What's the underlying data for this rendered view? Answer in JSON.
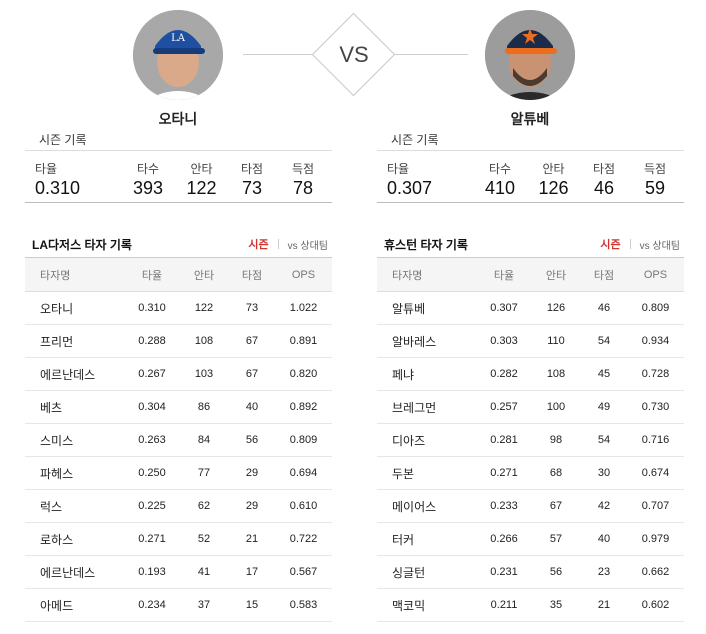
{
  "players": {
    "left": {
      "name": "오타니",
      "photo": "ohtani-photo",
      "cap_color": "#1f4fa0"
    },
    "right": {
      "name": "알튜베",
      "photo": "altuve-photo",
      "cap_color": "#1d2b4a"
    }
  },
  "vs_label": "VS",
  "season": {
    "title": "시즌 기록",
    "labels": [
      "타율",
      "타수",
      "안타",
      "타점",
      "득점"
    ],
    "left": [
      "0.310",
      "393",
      "122",
      "73",
      "78"
    ],
    "right": [
      "0.307",
      "410",
      "126",
      "46",
      "59"
    ]
  },
  "teams": {
    "left": {
      "title": "LA다저스 타자 기록",
      "tab_season": "시즌",
      "tab_vs": "vs 상대팀",
      "headers": [
        "타자명",
        "타율",
        "안타",
        "타점",
        "OPS"
      ],
      "rows": [
        [
          "오타니",
          "0.310",
          "122",
          "73",
          "1.022"
        ],
        [
          "프리먼",
          "0.288",
          "108",
          "67",
          "0.891"
        ],
        [
          "에르난데스",
          "0.267",
          "103",
          "67",
          "0.820"
        ],
        [
          "베츠",
          "0.304",
          "86",
          "40",
          "0.892"
        ],
        [
          "스미스",
          "0.263",
          "84",
          "56",
          "0.809"
        ],
        [
          "파헤스",
          "0.250",
          "77",
          "29",
          "0.694"
        ],
        [
          "럭스",
          "0.225",
          "62",
          "29",
          "0.610"
        ],
        [
          "로하스",
          "0.271",
          "52",
          "21",
          "0.722"
        ],
        [
          "에르난데스",
          "0.193",
          "41",
          "17",
          "0.567"
        ],
        [
          "아메드",
          "0.234",
          "37",
          "15",
          "0.583"
        ]
      ]
    },
    "right": {
      "title": "휴스턴 타자 기록",
      "tab_season": "시즌",
      "tab_vs": "vs 상대팀",
      "headers": [
        "타자명",
        "타율",
        "안타",
        "타점",
        "OPS"
      ],
      "rows": [
        [
          "알튜베",
          "0.307",
          "126",
          "46",
          "0.809"
        ],
        [
          "알바레스",
          "0.303",
          "110",
          "54",
          "0.934"
        ],
        [
          "페냐",
          "0.282",
          "108",
          "45",
          "0.728"
        ],
        [
          "브레그먼",
          "0.257",
          "100",
          "49",
          "0.730"
        ],
        [
          "디아즈",
          "0.281",
          "98",
          "54",
          "0.716"
        ],
        [
          "두본",
          "0.271",
          "68",
          "30",
          "0.674"
        ],
        [
          "메이어스",
          "0.233",
          "67",
          "42",
          "0.707"
        ],
        [
          "터커",
          "0.266",
          "57",
          "40",
          "0.979"
        ],
        [
          "싱글턴",
          "0.231",
          "56",
          "23",
          "0.662"
        ],
        [
          "맥코믹",
          "0.211",
          "35",
          "21",
          "0.602"
        ]
      ]
    }
  }
}
